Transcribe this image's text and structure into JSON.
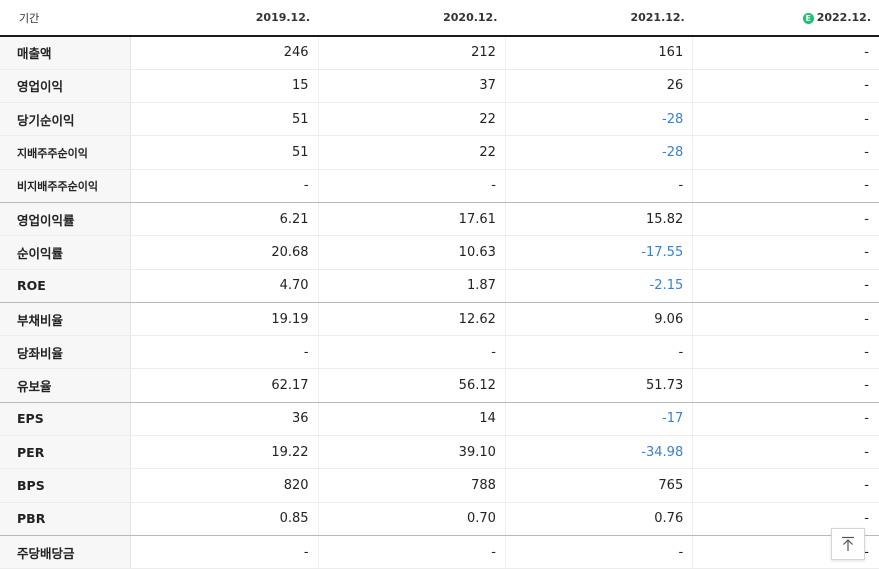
{
  "header": {
    "label": "기간",
    "estimate_badge": "E",
    "periods": [
      "2019.12.",
      "2020.12.",
      "2021.12.",
      "2022.12."
    ]
  },
  "rows": [
    {
      "label": "매출액",
      "values": [
        "246",
        "212",
        "161",
        "-"
      ]
    },
    {
      "label": "영업이익",
      "values": [
        "15",
        "37",
        "26",
        "-"
      ]
    },
    {
      "label": "당기순이익",
      "values": [
        "51",
        "22",
        "-28",
        "-"
      ]
    },
    {
      "label": "지배주주순이익",
      "values": [
        "51",
        "22",
        "-28",
        "-"
      ]
    },
    {
      "label": "비지배주주순이익",
      "values": [
        "-",
        "-",
        "-",
        "-"
      ]
    },
    {
      "label": "영업이익률",
      "values": [
        "6.21",
        "17.61",
        "15.82",
        "-"
      ]
    },
    {
      "label": "순이익률",
      "values": [
        "20.68",
        "10.63",
        "-17.55",
        "-"
      ]
    },
    {
      "label": "ROE",
      "values": [
        "4.70",
        "1.87",
        "-2.15",
        "-"
      ]
    },
    {
      "label": "부채비율",
      "values": [
        "19.19",
        "12.62",
        "9.06",
        "-"
      ]
    },
    {
      "label": "당좌비율",
      "values": [
        "-",
        "-",
        "-",
        "-"
      ]
    },
    {
      "label": "유보율",
      "values": [
        "62.17",
        "56.12",
        "51.73",
        "-"
      ]
    },
    {
      "label": "EPS",
      "values": [
        "36",
        "14",
        "-17",
        "-"
      ]
    },
    {
      "label": "PER",
      "values": [
        "19.22",
        "39.10",
        "-34.98",
        "-"
      ]
    },
    {
      "label": "BPS",
      "values": [
        "820",
        "788",
        "765",
        "-"
      ]
    },
    {
      "label": "PBR",
      "values": [
        "0.85",
        "0.70",
        "0.76",
        "-"
      ]
    },
    {
      "label": "주당배당금",
      "values": [
        "-",
        "-",
        "-",
        "-"
      ]
    }
  ],
  "colors": {
    "negative": "#3b7fd1",
    "estimate_badge": "#1dbf73"
  },
  "scroll_top_button": {
    "icon": "arrow-up-to-top-icon"
  }
}
